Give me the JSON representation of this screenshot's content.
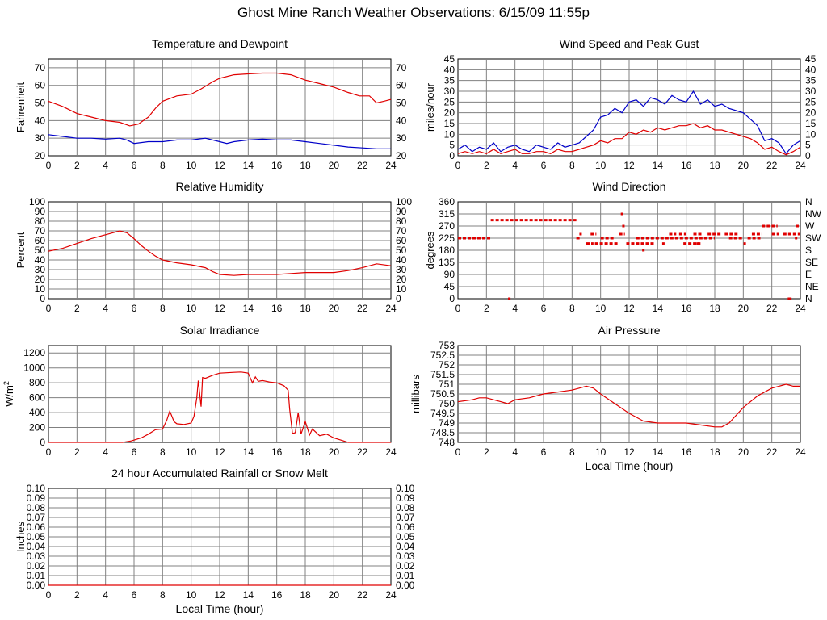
{
  "page_title": "Ghost Mine Ranch Weather Observations: 6/15/09 11:55p",
  "colors": {
    "primary": "#e00000",
    "secondary": "#0000c8",
    "grid": "#808080"
  },
  "chart_data": [
    {
      "id": "temp",
      "type": "line",
      "title": "Temperature and Dewpoint",
      "ylabel": "Fahrenheit",
      "xlabel": "",
      "xlim": [
        0,
        24
      ],
      "ylim": [
        20,
        75
      ],
      "xticks": [
        0,
        2,
        4,
        6,
        8,
        10,
        12,
        14,
        16,
        18,
        20,
        22,
        24
      ],
      "yticks": [
        20,
        30,
        40,
        50,
        60,
        70
      ],
      "right_ticks": [
        "20",
        "30",
        "40",
        "50",
        "60",
        "70"
      ],
      "grid": true,
      "series": [
        {
          "color": "#e00000",
          "x": [
            0,
            1,
            2,
            3,
            4,
            5,
            5.7,
            6.3,
            7,
            7.5,
            8,
            9,
            10,
            10.7,
            11.5,
            12,
            13,
            14,
            15,
            16,
            17,
            18,
            19,
            20,
            21,
            21.8,
            22.5,
            23,
            23.5,
            24
          ],
          "values": [
            51,
            48,
            44,
            42,
            40,
            39,
            37,
            38,
            42,
            47,
            51,
            54,
            55,
            58,
            62,
            64,
            66,
            66.5,
            67,
            67,
            66,
            63,
            61,
            59,
            56,
            54,
            54,
            50,
            51,
            52
          ]
        },
        {
          "color": "#0000c8",
          "x": [
            0,
            1,
            2,
            3,
            4,
            5,
            5.5,
            6,
            7,
            8,
            9,
            10,
            11,
            12,
            12.5,
            13,
            14,
            15,
            16,
            17,
            18,
            19,
            20,
            21,
            22,
            23,
            24
          ],
          "values": [
            32,
            31,
            30,
            30,
            29.5,
            30,
            29,
            27,
            28,
            28,
            29,
            29,
            30,
            28,
            27,
            28,
            29,
            29.5,
            29,
            29,
            28,
            27,
            26,
            25,
            24.5,
            24,
            24
          ]
        }
      ]
    },
    {
      "id": "wind",
      "type": "line",
      "title": "Wind Speed and Peak Gust",
      "ylabel": "miles/hour",
      "xlabel": "",
      "xlim": [
        0,
        24
      ],
      "ylim": [
        0,
        45
      ],
      "xticks": [
        0,
        2,
        4,
        6,
        8,
        10,
        12,
        14,
        16,
        18,
        20,
        22,
        24
      ],
      "yticks": [
        0,
        5,
        10,
        15,
        20,
        25,
        30,
        35,
        40,
        45
      ],
      "right_ticks": [
        "0",
        "5",
        "10",
        "15",
        "20",
        "25",
        "30",
        "35",
        "40",
        "45"
      ],
      "grid": true,
      "series": [
        {
          "color": "#0000c8",
          "x": [
            0,
            0.5,
            1,
            1.5,
            2,
            2.5,
            3,
            3.5,
            4,
            4.5,
            5,
            5.5,
            6,
            6.5,
            7,
            7.5,
            8,
            8.5,
            9,
            9.5,
            10,
            10.5,
            11,
            11.5,
            12,
            12.5,
            13,
            13.5,
            14,
            14.5,
            15,
            15.5,
            16,
            16.5,
            17,
            17.5,
            18,
            18.5,
            19,
            19.5,
            20,
            20.5,
            21,
            21.5,
            22,
            22.5,
            23,
            23.5,
            24
          ],
          "values": [
            3,
            5,
            2,
            4,
            3,
            6,
            2,
            4,
            5,
            3,
            2,
            5,
            4,
            3,
            6,
            4,
            5,
            6,
            9,
            12,
            18,
            19,
            22,
            20,
            25,
            26,
            23,
            27,
            26,
            24,
            28,
            26,
            25,
            30,
            24,
            26,
            23,
            24,
            22,
            21,
            20,
            17,
            14,
            7,
            8,
            6,
            1,
            5,
            7
          ]
        },
        {
          "color": "#e00000",
          "x": [
            0,
            0.5,
            1,
            1.5,
            2,
            2.5,
            3,
            3.5,
            4,
            4.5,
            5,
            5.5,
            6,
            6.5,
            7,
            7.5,
            8,
            8.5,
            9,
            9.5,
            10,
            10.5,
            11,
            11.5,
            12,
            12.5,
            13,
            13.5,
            14,
            14.5,
            15,
            15.5,
            16,
            16.5,
            17,
            17.5,
            18,
            18.5,
            19,
            19.5,
            20,
            20.5,
            21,
            21.5,
            22,
            22.5,
            23,
            23.5,
            24
          ],
          "values": [
            1,
            2,
            1,
            2,
            1,
            3,
            1,
            2,
            3,
            1,
            1,
            2,
            2,
            1,
            3,
            2,
            2,
            3,
            4,
            5,
            7,
            6,
            8,
            8,
            11,
            10,
            12,
            11,
            13,
            12,
            13,
            14,
            14,
            15,
            13,
            14,
            12,
            12,
            11,
            10,
            9,
            8,
            6,
            3,
            4,
            2,
            0.5,
            2,
            4
          ]
        }
      ]
    },
    {
      "id": "humidity",
      "type": "line",
      "title": "Relative Humidity",
      "ylabel": "Percent",
      "xlabel": "",
      "xlim": [
        0,
        24
      ],
      "ylim": [
        0,
        100
      ],
      "xticks": [
        0,
        2,
        4,
        6,
        8,
        10,
        12,
        14,
        16,
        18,
        20,
        22,
        24
      ],
      "yticks": [
        0,
        10,
        20,
        30,
        40,
        50,
        60,
        70,
        80,
        90,
        100
      ],
      "right_ticks": [
        "0",
        "10",
        "20",
        "30",
        "40",
        "50",
        "60",
        "70",
        "80",
        "90",
        "100"
      ],
      "grid": true,
      "series": [
        {
          "color": "#e00000",
          "x": [
            0,
            1,
            2,
            3,
            4,
            4.5,
            5,
            5.5,
            6,
            6.5,
            7,
            7.5,
            8,
            9,
            10,
            11,
            11.5,
            12,
            13,
            14,
            15,
            16,
            17,
            18,
            19,
            20,
            21,
            22,
            23,
            24
          ],
          "values": [
            49,
            52,
            57,
            62,
            66,
            68,
            70,
            68,
            62,
            55,
            49,
            44,
            40,
            37,
            35,
            32,
            28,
            25,
            24,
            25,
            25,
            25,
            26,
            27,
            27,
            27,
            29,
            32,
            36,
            34
          ]
        }
      ]
    },
    {
      "id": "direction",
      "type": "scatter",
      "title": "Wind Direction",
      "ylabel": "degrees",
      "xlabel": "",
      "xlim": [
        0,
        24
      ],
      "ylim": [
        0,
        360
      ],
      "xticks": [
        0,
        2,
        4,
        6,
        8,
        10,
        12,
        14,
        16,
        18,
        20,
        22,
        24
      ],
      "yticks": [
        0,
        45,
        90,
        135,
        180,
        225,
        270,
        315,
        360
      ],
      "right_ticks": [
        "N",
        "NE",
        "E",
        "SE",
        "S",
        "SW",
        "W",
        "NW",
        "N"
      ],
      "grid": true,
      "series": [
        {
          "color": "#e00000",
          "segments": [
            [
              0,
              2.3,
              225
            ],
            [
              2.3,
              8.3,
              292
            ],
            [
              8.3,
              8.6,
              225
            ],
            [
              9.0,
              9.5,
              205
            ],
            [
              9.6,
              11.3,
              205
            ],
            [
              9.3,
              9.7,
              240
            ],
            [
              10.0,
              11.0,
              225
            ],
            [
              11.3,
              11.7,
              240
            ],
            [
              11.8,
              13.8,
              205
            ],
            [
              12.5,
              18.0,
              225
            ],
            [
              14.8,
              15.3,
              240
            ],
            [
              15.5,
              16.0,
              240
            ],
            [
              16.5,
              17.2,
              240
            ],
            [
              17.5,
              18.5,
              240
            ],
            [
              18.7,
              19.6,
              240
            ],
            [
              19.0,
              20.0,
              225
            ],
            [
              20.3,
              21.2,
              225
            ],
            [
              20.6,
              21.3,
              240
            ],
            [
              21.3,
              22.4,
              270
            ],
            [
              22.0,
              22.5,
              240
            ],
            [
              22.8,
              24.0,
              240
            ],
            [
              15.8,
              17.0,
              205
            ]
          ],
          "points": [
            [
              3.6,
              0
            ],
            [
              11.5,
              315
            ],
            [
              11.6,
              270
            ],
            [
              13.0,
              180
            ],
            [
              14.4,
              205
            ],
            [
              16.8,
              205
            ],
            [
              20.1,
              205
            ],
            [
              23.2,
              0
            ],
            [
              23.3,
              0
            ],
            [
              23.8,
              270
            ],
            [
              23.7,
              225
            ],
            [
              8.6,
              240
            ]
          ]
        }
      ]
    },
    {
      "id": "solar",
      "type": "line",
      "title": "Solar Irradiance",
      "ylabel": "W/m2",
      "xlabel": "",
      "xlim": [
        0,
        24
      ],
      "ylim": [
        0,
        1300
      ],
      "xticks": [
        0,
        2,
        4,
        6,
        8,
        10,
        12,
        14,
        16,
        18,
        20,
        22,
        24
      ],
      "yticks": [
        0,
        200,
        400,
        600,
        800,
        1000,
        1200
      ],
      "right_ticks": [],
      "grid": true,
      "series": [
        {
          "color": "#e00000",
          "x": [
            0,
            5.2,
            5.8,
            6.5,
            7,
            7.5,
            8,
            8.3,
            8.5,
            8.8,
            9,
            9.5,
            10,
            10.2,
            10.4,
            10.5,
            10.7,
            10.8,
            11,
            11.5,
            12,
            13,
            13.5,
            14,
            14.3,
            14.5,
            14.7,
            15,
            15.5,
            16,
            16.5,
            16.8,
            16.9,
            17.1,
            17.3,
            17.5,
            17.7,
            18,
            18.3,
            18.5,
            19,
            19.5,
            20,
            20.5,
            21,
            24
          ],
          "values": [
            0,
            0,
            20,
            60,
            110,
            170,
            180,
            300,
            420,
            280,
            250,
            240,
            260,
            350,
            600,
            830,
            480,
            870,
            860,
            900,
            930,
            940,
            945,
            930,
            800,
            880,
            820,
            830,
            810,
            800,
            760,
            700,
            450,
            120,
            130,
            400,
            110,
            280,
            100,
            180,
            90,
            110,
            60,
            30,
            0,
            0
          ]
        }
      ]
    },
    {
      "id": "pressure",
      "type": "line",
      "title": "Air Pressure",
      "ylabel": "millibars",
      "xlabel": "Local Time (hour)",
      "xlim": [
        0,
        24
      ],
      "ylim": [
        748.0,
        753.0
      ],
      "xticks": [
        0,
        2,
        4,
        6,
        8,
        10,
        12,
        14,
        16,
        18,
        20,
        22,
        24
      ],
      "yticks": [
        748.0,
        748.5,
        749.0,
        749.5,
        750.0,
        750.5,
        751.0,
        751.5,
        752.0,
        752.5,
        753.0
      ],
      "right_ticks": [],
      "grid": true,
      "series": [
        {
          "color": "#e00000",
          "x": [
            0,
            1,
            1.5,
            2,
            3,
            3.5,
            4,
            5,
            6,
            7,
            8,
            8.5,
            9,
            9.5,
            10,
            11,
            12,
            13,
            14,
            15,
            16,
            17,
            18,
            18.5,
            19,
            20,
            21,
            22,
            22.5,
            23,
            23.5,
            24
          ],
          "values": [
            750.1,
            750.2,
            750.3,
            750.3,
            750.1,
            750.0,
            750.2,
            750.3,
            750.5,
            750.6,
            750.7,
            750.8,
            750.9,
            750.8,
            750.5,
            750.0,
            749.5,
            749.1,
            749.0,
            749.0,
            749.0,
            748.9,
            748.8,
            748.8,
            749.0,
            749.8,
            750.4,
            750.8,
            750.9,
            751.0,
            750.9,
            750.9
          ]
        }
      ]
    },
    {
      "id": "rain",
      "type": "line",
      "title": "24 hour Accumulated Rainfall or Snow Melt",
      "ylabel": "Inches",
      "xlabel": "Local Time (hour)",
      "xlim": [
        0,
        24
      ],
      "ylim": [
        0,
        0.1
      ],
      "xticks": [
        0,
        2,
        4,
        6,
        8,
        10,
        12,
        14,
        16,
        18,
        20,
        22,
        24
      ],
      "yticks": [
        "0.00",
        "0.01",
        "0.02",
        "0.03",
        "0.04",
        "0.05",
        "0.06",
        "0.07",
        "0.08",
        "0.09",
        "0.10"
      ],
      "right_ticks": [
        "0.00",
        "0.01",
        "0.02",
        "0.03",
        "0.04",
        "0.05",
        "0.06",
        "0.07",
        "0.08",
        "0.09",
        "0.10"
      ],
      "grid": true,
      "series": [
        {
          "color": "#e00000",
          "x": [
            0,
            24
          ],
          "values": [
            0,
            0
          ]
        }
      ]
    }
  ]
}
